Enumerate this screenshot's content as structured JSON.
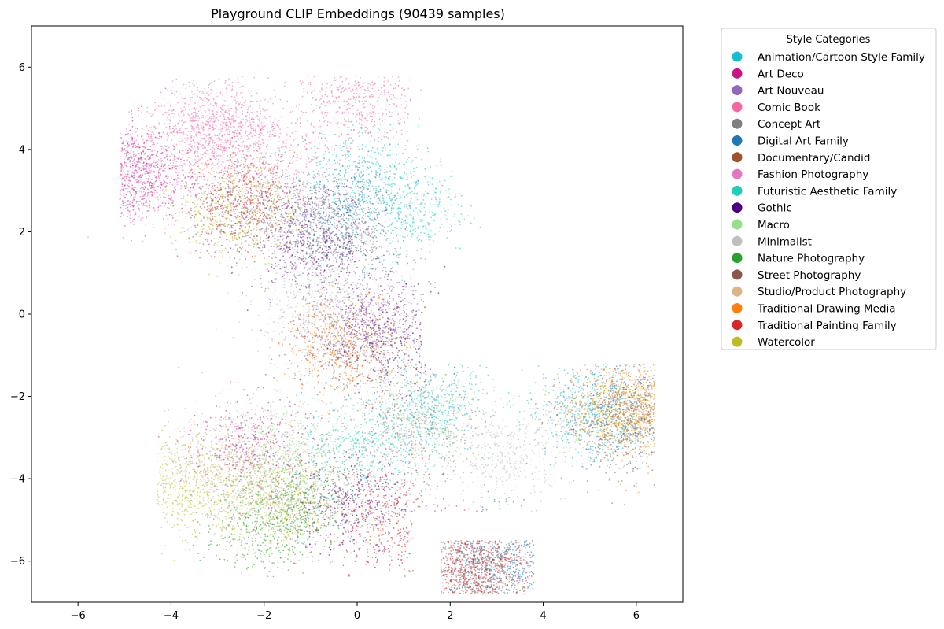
{
  "chart_data": {
    "type": "scatter",
    "title": "Playground CLIP Embeddings (90439 samples)",
    "xlabel": "",
    "ylabel": "",
    "xlim": [
      -7,
      7
    ],
    "ylim": [
      -7,
      7
    ],
    "x_ticks": [
      "−6",
      "−4",
      "−2",
      "0",
      "2",
      "4",
      "6"
    ],
    "y_ticks": [
      "6",
      "4",
      "2",
      "0",
      "−2",
      "−4",
      "−6"
    ],
    "x_tick_values": [
      -6,
      -4,
      -2,
      0,
      2,
      4,
      6
    ],
    "y_tick_values": [
      6,
      4,
      2,
      0,
      -2,
      -4,
      -6
    ],
    "grid": false,
    "legend_title": "Style Categories",
    "legend_position": "outside-right",
    "series": [
      {
        "name": "Animation/Cartoon Style Family",
        "color": "#17becf",
        "clusters": [
          [
            0.0,
            3.4
          ],
          [
            1.6,
            -2.3
          ],
          [
            4.9,
            -2.3
          ]
        ]
      },
      {
        "name": "Art Deco",
        "color": "#c71585",
        "clusters": [
          [
            -4.9,
            3.5
          ],
          [
            -2.3,
            -3.2
          ]
        ]
      },
      {
        "name": "Art Nouveau",
        "color": "#9467bd",
        "clusters": [
          [
            -1.2,
            2.3
          ],
          [
            0.3,
            0.0
          ]
        ]
      },
      {
        "name": "Comic Book",
        "color": "#f768a1",
        "clusters": [
          [
            -3.2,
            4.6
          ],
          [
            -2.2,
            4.0
          ],
          [
            0.0,
            5.2
          ]
        ]
      },
      {
        "name": "Concept Art",
        "color": "#7f7f7f",
        "clusters": [
          [
            -0.4,
            1.8
          ],
          [
            1.2,
            -2.8
          ]
        ]
      },
      {
        "name": "Digital Art Family",
        "color": "#1f77b4",
        "clusters": [
          [
            -0.3,
            2.4
          ],
          [
            5.7,
            -2.6
          ],
          [
            3.0,
            -6.0
          ]
        ]
      },
      {
        "name": "Documentary/Candid",
        "color": "#a0522d",
        "clusters": [
          [
            -0.3,
            -0.7
          ],
          [
            5.8,
            -2.4
          ]
        ]
      },
      {
        "name": "Fashion Photography",
        "color": "#e377c2",
        "clusters": [
          [
            -3.0,
            4.5
          ],
          [
            -4.8,
            3.3
          ]
        ]
      },
      {
        "name": "Futuristic Aesthetic Family",
        "color": "#1fcfb8",
        "clusters": [
          [
            1.1,
            2.6
          ],
          [
            0.0,
            -3.3
          ]
        ]
      },
      {
        "name": "Gothic",
        "color": "#4b0082",
        "clusters": [
          [
            -0.9,
            1.7
          ],
          [
            0.6,
            -0.6
          ],
          [
            -0.3,
            -4.6
          ]
        ]
      },
      {
        "name": "Macro",
        "color": "#98df8a",
        "clusters": [
          [
            -1.6,
            -3.2
          ],
          [
            1.4,
            -2.5
          ]
        ]
      },
      {
        "name": "Minimalist",
        "color": "#bfbfbf",
        "clusters": [
          [
            -1.0,
            0.2
          ],
          [
            3.2,
            -3.4
          ]
        ]
      },
      {
        "name": "Nature Photography",
        "color": "#2ca02c",
        "clusters": [
          [
            -2.0,
            -5.2
          ],
          [
            -1.3,
            -4.5
          ]
        ]
      },
      {
        "name": "Street Photography",
        "color": "#8c564b",
        "clusters": [
          [
            -2.4,
            2.8
          ],
          [
            2.5,
            -6.3
          ]
        ]
      },
      {
        "name": "Studio/Product Photography",
        "color": "#dbb586",
        "clusters": [
          [
            -2.0,
            -4.3
          ],
          [
            -3.0,
            -3.5
          ]
        ]
      },
      {
        "name": "Traditional Drawing Media",
        "color": "#ff7f0e",
        "clusters": [
          [
            -0.2,
            -0.8
          ],
          [
            6.0,
            -2.3
          ]
        ]
      },
      {
        "name": "Traditional Painting Family",
        "color": "#d62728",
        "clusters": [
          [
            -2.5,
            2.6
          ],
          [
            0.6,
            -4.9
          ],
          [
            2.4,
            -6.2
          ]
        ]
      },
      {
        "name": "Watercolor",
        "color": "#bcbd22",
        "clusters": [
          [
            -2.6,
            2.5
          ],
          [
            -1.6,
            -4.6
          ],
          [
            -3.8,
            -4.2
          ],
          [
            5.6,
            -2.3
          ]
        ]
      }
    ],
    "approx_samples": 90439
  }
}
